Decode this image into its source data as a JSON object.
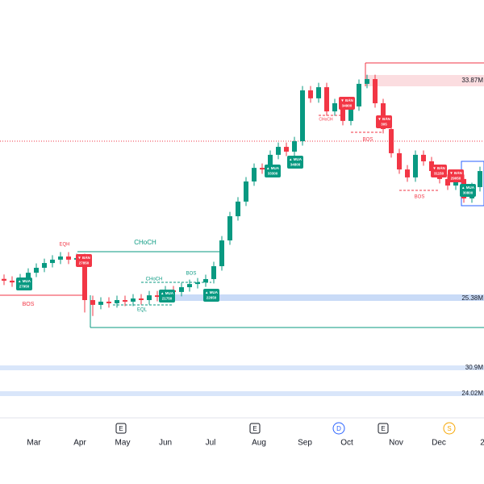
{
  "chart_data": {
    "type": "candlestick",
    "up_color": "#089981",
    "down_color": "#f23645",
    "ylim": [
      19480,
      43700
    ],
    "open": [
      27900,
      27800,
      27700,
      27930,
      28250,
      28530,
      28800,
      28990,
      29170,
      28990,
      29080,
      26700,
      26430,
      26610,
      26520,
      26700,
      26610,
      26790,
      26700,
      26970,
      26880,
      27250,
      27160,
      27430,
      27610,
      27700,
      27890,
      28620,
      30080,
      31450,
      32280,
      33420,
      34190,
      34100,
      34930,
      35380,
      35110,
      35700,
      38580,
      38130,
      38760,
      37390,
      37850,
      36850,
      37670,
      38950,
      39220,
      37850,
      36390,
      35020,
      34100,
      33650,
      34930,
      34560,
      34010,
      33560,
      33190,
      33560,
      32460,
      33100
    ],
    "high": [
      28150,
      28050,
      28180,
      28500,
      28780,
      29050,
      29240,
      29420,
      29420,
      29330,
      29330,
      26950,
      26860,
      26860,
      26950,
      26950,
      27040,
      27040,
      27220,
      27220,
      27500,
      27500,
      27680,
      27860,
      27950,
      28140,
      28870,
      30330,
      31700,
      32530,
      33670,
      34440,
      34440,
      35180,
      35630,
      35630,
      35950,
      38830,
      38830,
      39010,
      39010,
      38100,
      38100,
      37920,
      39200,
      39470,
      39470,
      38100,
      36640,
      35270,
      34350,
      35180,
      35180,
      34810,
      34260,
      33810,
      33810,
      33810,
      33350,
      34260
    ],
    "low": [
      27550,
      27450,
      27450,
      27680,
      28000,
      28280,
      28550,
      28740,
      28740,
      28740,
      26000,
      25800,
      26180,
      26270,
      26270,
      26360,
      26360,
      26450,
      26450,
      26630,
      26630,
      26910,
      26910,
      27180,
      27360,
      27450,
      27640,
      28370,
      29830,
      31200,
      32030,
      33170,
      33850,
      33850,
      34680,
      34860,
      34860,
      35450,
      37880,
      37880,
      37140,
      37140,
      36600,
      36600,
      37420,
      38700,
      37600,
      36140,
      34770,
      33850,
      33400,
      33400,
      34310,
      33760,
      33310,
      32940,
      32940,
      32210,
      32210,
      32850
    ],
    "close": [
      27800,
      27700,
      27930,
      28250,
      28530,
      28800,
      28990,
      29170,
      28990,
      29080,
      26700,
      26430,
      26610,
      26520,
      26700,
      26610,
      26790,
      26700,
      26970,
      26880,
      27250,
      27160,
      27430,
      27610,
      27700,
      27890,
      28620,
      30080,
      31450,
      32280,
      33420,
      34190,
      34100,
      34930,
      35380,
      35110,
      35700,
      38580,
      38130,
      38760,
      37390,
      37850,
      36850,
      37670,
      38950,
      39220,
      37850,
      36390,
      35020,
      34100,
      33650,
      34930,
      34560,
      34010,
      33560,
      33190,
      33560,
      32460,
      33100,
      34010
    ],
    "x_labels": [
      "Mar",
      "Apr",
      "May",
      "Jun",
      "Jul",
      "Aug",
      "Sep",
      "Oct",
      "Nov",
      "Dec",
      "2"
    ],
    "events": [
      "E",
      "E",
      "D",
      "E",
      "S"
    ],
    "level_labels": [
      "33.87M",
      "25.38M",
      "30.9M",
      "24.02M"
    ],
    "annotations": [
      "EQH",
      "CHoCH",
      "CHoCH",
      "BOS",
      "BOS",
      "EQL",
      "CHoCH",
      "BOS",
      "BOS"
    ],
    "signals": [
      {
        "label": "▲ MUA",
        "price": 27950
      },
      {
        "label": "▼ BÁN",
        "price": 27850
      },
      {
        "label": "▲ MUA",
        "price": 21750
      },
      {
        "label": "▲ MUA",
        "price": 22650
      },
      {
        "label": "▲ MUA",
        "price": 33300
      },
      {
        "label": "▲ MUA",
        "price": 34800
      },
      {
        "label": "▼ BÁN",
        "price": 34900
      },
      {
        "label": "▼ BÁN",
        "price": 305
      },
      {
        "label": "▼ BÁN",
        "price": 31150
      },
      {
        "label": "▼ BÁN",
        "price": 29050
      },
      {
        "label": "▲ MUA",
        "price": 30800
      }
    ]
  }
}
